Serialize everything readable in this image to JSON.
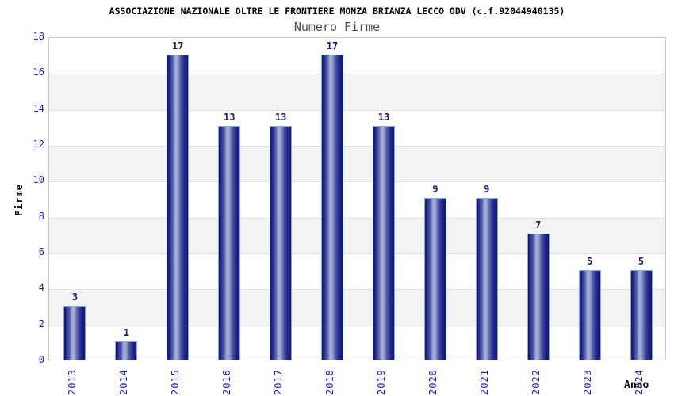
{
  "title": "ASSOCIAZIONE NAZIONALE OLTRE LE FRONTIERE MONZA BRIANZA LECCO ODV (c.f.92044940135)",
  "subtitle": "Numero Firme",
  "chart_data": {
    "type": "bar",
    "title": "ASSOCIAZIONE NAZIONALE OLTRE LE FRONTIERE MONZA BRIANZA LECCO ODV (c.f.92044940135)",
    "subtitle": "Numero Firme",
    "xlabel": "Anno",
    "ylabel": "Firme",
    "categories": [
      "2013",
      "2014",
      "2015",
      "2016",
      "2017",
      "2018",
      "2019",
      "2020",
      "2021",
      "2022",
      "2023",
      "2024"
    ],
    "values": [
      3,
      1,
      17,
      13,
      13,
      17,
      13,
      9,
      9,
      7,
      5,
      5
    ],
    "ylim": [
      0,
      18
    ],
    "yticks": [
      0,
      2,
      4,
      6,
      8,
      10,
      12,
      14,
      16,
      18
    ],
    "grid": true,
    "band_fill": "alternating horizontal gray bands every 2 units (gray between 2-4, 6-8, 10-12, 14-16)",
    "legend": "none",
    "value_labels": "above each bar"
  },
  "colors": {
    "axis_tick_blue": "#2020cc",
    "value_label_navy": "#1a1a78",
    "band_gray": "#f3f3f3",
    "gridline_gray": "#e0e0e0",
    "plot_border_gray": "#c9c9c9",
    "bar_edge_navy": "#15156e",
    "bar_highlight": "#a9b2d8",
    "bar_outline_lightblue": "#7aaede",
    "title_color": "#000000",
    "subtitle_color": "#4d4d4d",
    "background": "#ffffff"
  }
}
